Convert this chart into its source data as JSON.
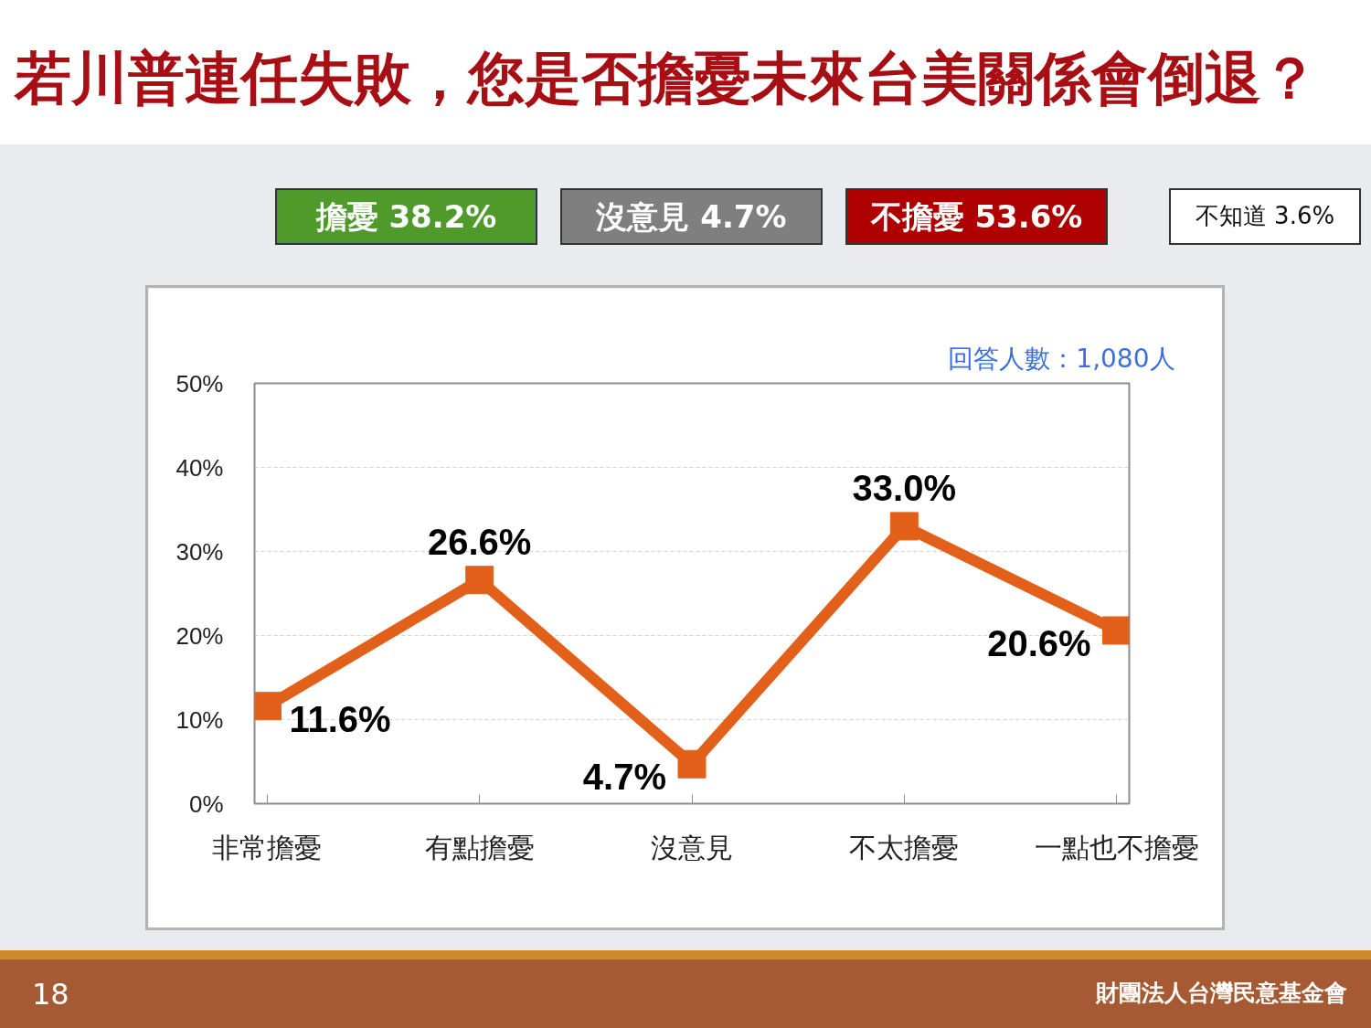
{
  "chart_data": {
    "type": "line",
    "title": "若川普連任失敗，您是否擔憂未來台美關係會倒退？",
    "categories": [
      "非常擔憂",
      "有點擔憂",
      "沒意見",
      "不太擔憂",
      "一點也不擔憂"
    ],
    "series": [
      {
        "color": "#e2601a",
        "values": [
          11.6,
          26.6,
          4.7,
          33.0,
          20.6
        ],
        "value_labels": [
          "11.6%",
          "26.6%",
          "4.7%",
          "33.0%",
          "20.6%"
        ]
      }
    ],
    "ylim": [
      0,
      50
    ],
    "yticks": [
      {
        "value": 0,
        "label": "0%"
      },
      {
        "value": 10,
        "label": "10%"
      },
      {
        "value": 20,
        "label": "20%"
      },
      {
        "value": 30,
        "label": "30%"
      },
      {
        "value": 40,
        "label": "40%"
      },
      {
        "value": 50,
        "label": "50%"
      }
    ],
    "grid": "y",
    "marker": "square",
    "annotations": [
      "擔憂 38.2%",
      "沒意見 4.7%",
      "不擔憂 53.6%",
      "不知道 3.6%",
      "回答人數：1,080人",
      "18",
      "財團法人台灣民意基金會"
    ]
  }
}
